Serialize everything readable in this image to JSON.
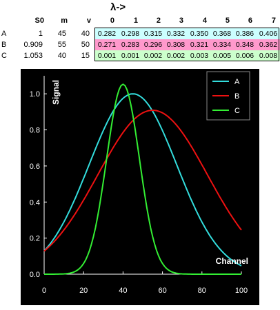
{
  "sheet": {
    "lambda_header": "λ->",
    "columns": [
      "S0",
      "m",
      "v"
    ],
    "lambda_indices": [
      "0",
      "1",
      "2",
      "3",
      "4",
      "5",
      "6",
      "7"
    ],
    "rows": [
      {
        "label": "A",
        "S0": "1",
        "m": "45",
        "v": "40",
        "values": [
          "0.282",
          "0.298",
          "0.315",
          "0.332",
          "0.350",
          "0.368",
          "0.386",
          "0.406"
        ],
        "color": "#ccffff"
      },
      {
        "label": "B",
        "S0": "0.909",
        "m": "55",
        "v": "50",
        "values": [
          "0.271",
          "0.283",
          "0.296",
          "0.308",
          "0.321",
          "0.334",
          "0.348",
          "0.362"
        ],
        "color": "#ff99cc"
      },
      {
        "label": "C",
        "S0": "1.053",
        "m": "40",
        "v": "15",
        "values": [
          "0.001",
          "0.001",
          "0.002",
          "0.002",
          "0.003",
          "0.005",
          "0.006",
          "0.008"
        ],
        "color": "#ccffcc"
      }
    ]
  },
  "chart_data": {
    "type": "line",
    "xlabel": "Channel",
    "ylabel": "Signal",
    "xlim": [
      0,
      100
    ],
    "ylim": [
      0,
      1.1
    ],
    "xticks": [
      "0",
      "20",
      "40",
      "60",
      "80",
      "100"
    ],
    "yticks": [
      "0.0",
      "0.2",
      "0.4",
      "0.6",
      "0.8",
      "1.0"
    ],
    "legend_position": "top-right",
    "background": "#000000",
    "series": [
      {
        "name": "A",
        "color": "#33dddd",
        "S0": 1,
        "m": 45,
        "v": 40
      },
      {
        "name": "B",
        "color": "#ee1111",
        "S0": 0.909,
        "m": 55,
        "v": 50
      },
      {
        "name": "C",
        "color": "#33ee33",
        "S0": 1.053,
        "m": 40,
        "v": 15
      }
    ]
  }
}
